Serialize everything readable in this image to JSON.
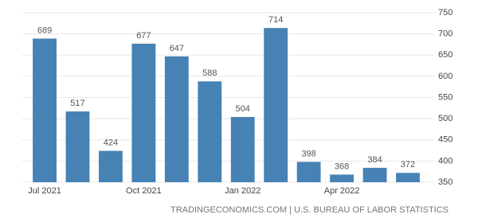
{
  "chart_data": {
    "type": "bar",
    "categories": [
      "Jul 2021",
      null,
      null,
      "Oct 2021",
      null,
      null,
      "Jan 2022",
      null,
      null,
      "Apr 2022",
      null,
      null
    ],
    "values": [
      689,
      517,
      424,
      677,
      647,
      588,
      504,
      714,
      398,
      368,
      384,
      372
    ],
    "color": "#4682b4",
    "ylim": [
      350,
      750
    ],
    "yticks": [
      350,
      400,
      450,
      500,
      550,
      600,
      650,
      700,
      750
    ],
    "grid": true,
    "source": "TRADINGECONOMICS.COM | U.S. BUREAU OF LABOR STATISTICS"
  }
}
